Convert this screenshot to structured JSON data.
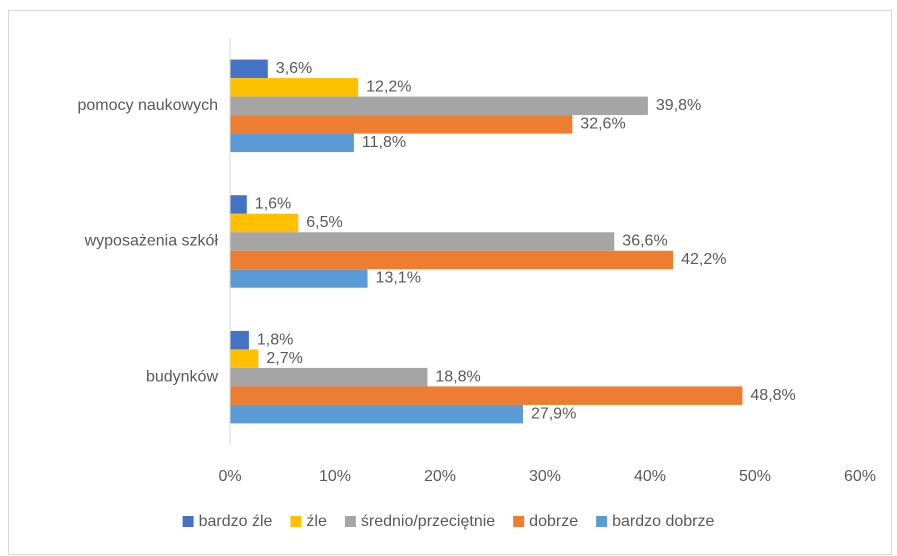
{
  "chart_data": {
    "type": "barh",
    "categories": [
      "pomocy naukowych",
      "wyposażenia szkół",
      "budynków"
    ],
    "series": [
      {
        "name": "bardzo źle",
        "color": "#4472c4",
        "values": [
          3.6,
          1.6,
          1.8
        ],
        "value_labels": [
          "3,6%",
          "1,6%",
          "1,8%"
        ]
      },
      {
        "name": "źle",
        "color": "#ffc000",
        "values": [
          12.2,
          6.5,
          2.7
        ],
        "value_labels": [
          "12,2%",
          "6,5%",
          "2,7%"
        ]
      },
      {
        "name": "średnio/przeciętnie",
        "color": "#a5a5a5",
        "values": [
          39.8,
          36.6,
          18.8
        ],
        "value_labels": [
          "39,8%",
          "36,6%",
          "18,8%"
        ]
      },
      {
        "name": "dobrze",
        "color": "#ed7d31",
        "values": [
          32.6,
          42.2,
          48.8
        ],
        "value_labels": [
          "32,6%",
          "42,2%",
          "48,8%"
        ]
      },
      {
        "name": "bardzo dobrze",
        "color": "#5b9bd5",
        "values": [
          11.8,
          13.1,
          27.9
        ],
        "value_labels": [
          "11,8%",
          "13,1%",
          "27,9%"
        ]
      }
    ],
    "xlim": [
      0,
      60
    ],
    "xticks": [
      {
        "value": 0,
        "label": "0%"
      },
      {
        "value": 10,
        "label": "10%"
      },
      {
        "value": 20,
        "label": "20%"
      },
      {
        "value": 30,
        "label": "30%"
      },
      {
        "value": 40,
        "label": "40%"
      },
      {
        "value": 50,
        "label": "50%"
      },
      {
        "value": 60,
        "label": "60%"
      }
    ],
    "legend": "bottom"
  }
}
